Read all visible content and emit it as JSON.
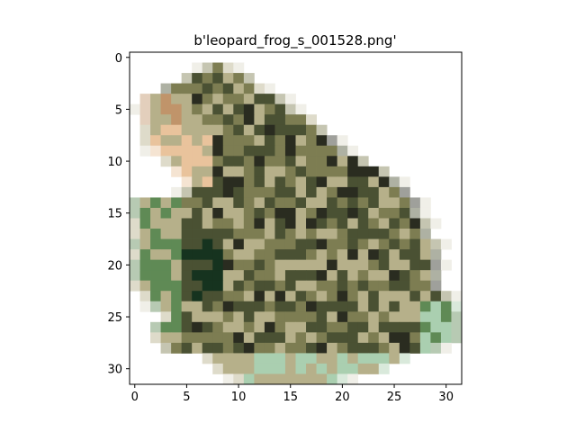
{
  "figure": {
    "title": "b'leopard_frog_s_001528.png'"
  },
  "image": {
    "subject": "leopard frog",
    "grid_size": 32,
    "palette": {
      "background": "#ffffff",
      "axis": "#000000",
      "skin_light": "#b6b08a",
      "skin_mid": "#7d7d52",
      "skin_dark": "#4a5133",
      "spot_dark": "#2a2c20",
      "spot_green": "#16331f",
      "throat": "#e9c39c",
      "cheek": "#c0946a",
      "leg_green": "#5f8a55",
      "foot_pale": "#aacfb0"
    }
  },
  "axes": {
    "x_ticks": [
      "0",
      "5",
      "10",
      "15",
      "20",
      "25",
      "30"
    ],
    "y_ticks": [
      "0",
      "5",
      "10",
      "15",
      "20",
      "25",
      "30"
    ]
  }
}
